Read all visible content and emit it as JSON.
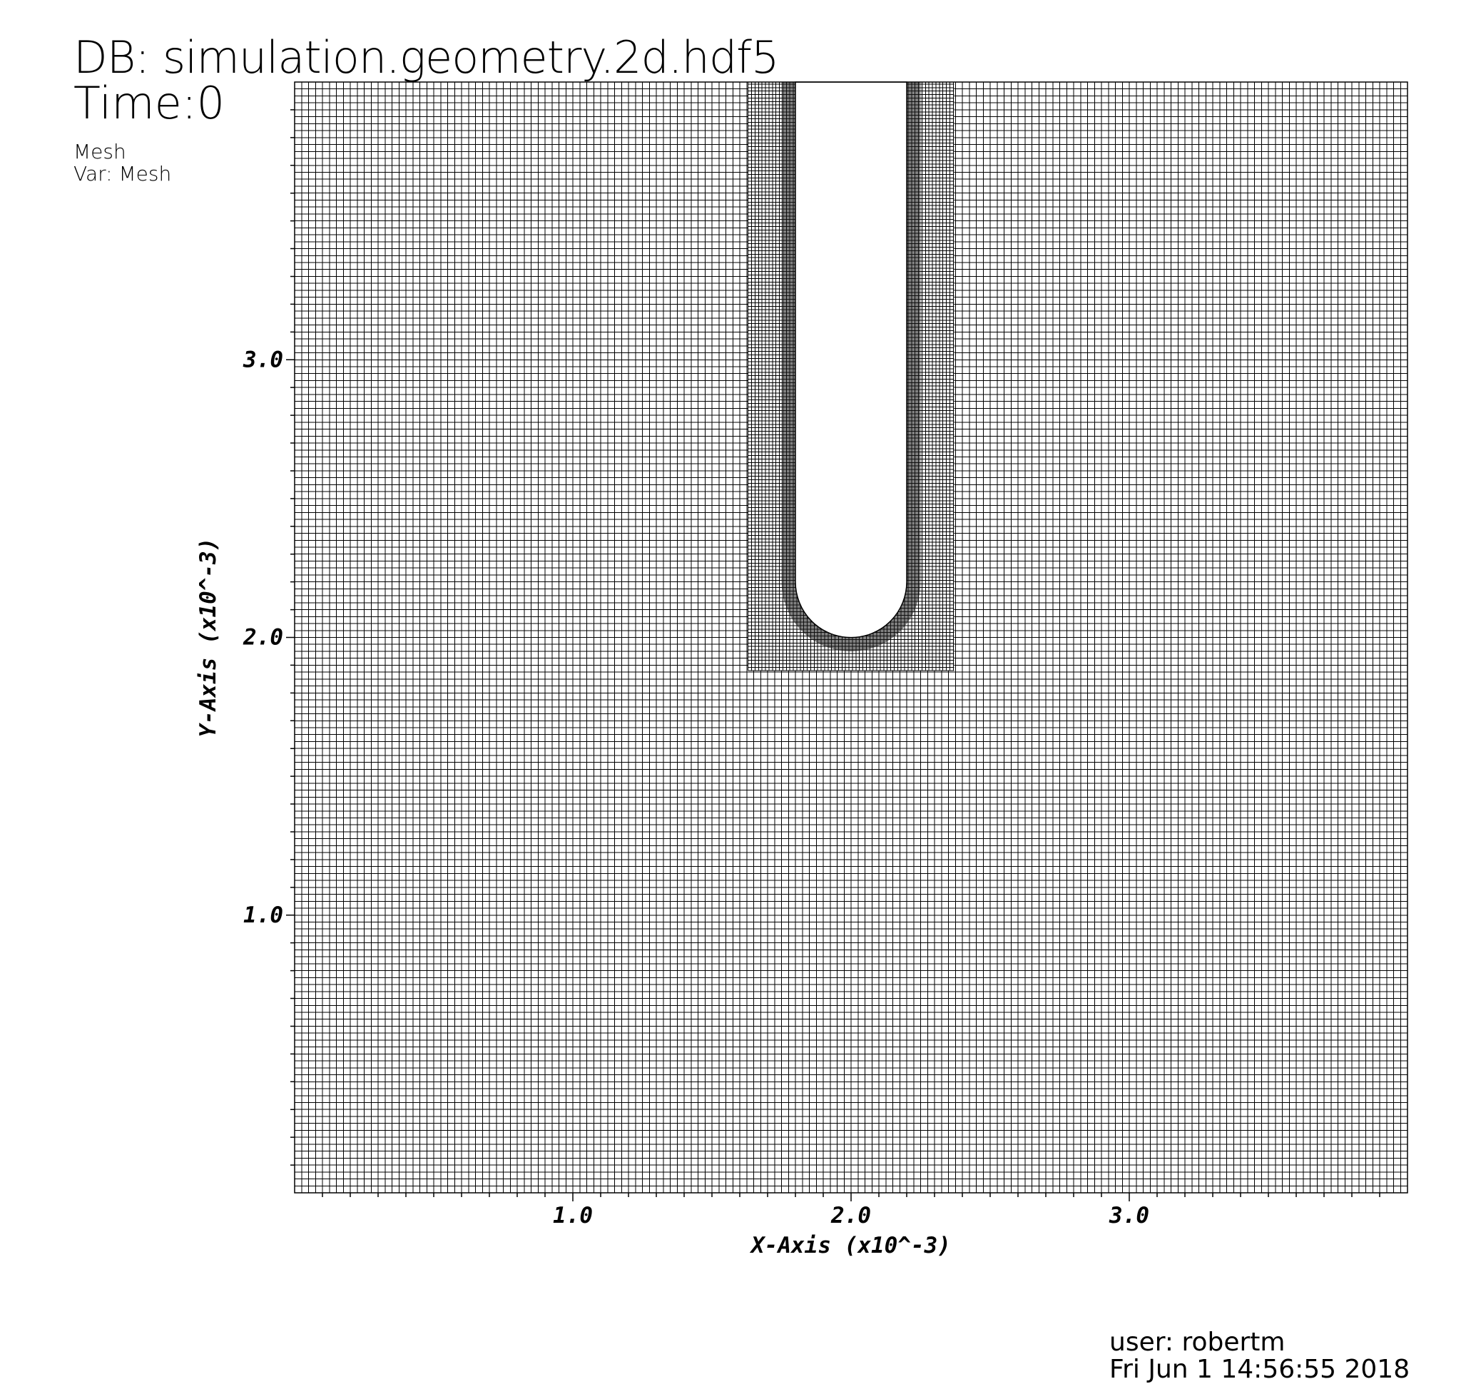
{
  "header": {
    "db": "DB: simulation.geometry.2d.hdf5",
    "time": "Time:0",
    "plot_name": "Mesh",
    "plot_var": "Var: Mesh"
  },
  "footer": {
    "user": "user: robertm",
    "date": "Fri Jun  1 14:56:55 2018"
  },
  "chart_data": {
    "type": "mesh",
    "xlabel": "X-Axis (x10^-3)",
    "ylabel": "Y-Axis (x10^-3)",
    "xlim": [
      0,
      4.0
    ],
    "ylim": [
      0,
      4.0
    ],
    "xticks": [
      "1.0",
      "2.0",
      "3.0"
    ],
    "yticks": [
      "1.0",
      "2.0",
      "3.0"
    ],
    "coarse_cell_size": 0.025,
    "refined_region": {
      "x": [
        1.63,
        2.37
      ],
      "y": [
        1.88,
        4.0
      ]
    },
    "fine_cell_size": 0.0125,
    "slot_cutout": {
      "x": [
        1.8,
        2.2
      ],
      "y_bottom": 2.0,
      "y_top": 4.0,
      "bottom_radius": 0.2
    },
    "colors": {
      "mesh": "#000000",
      "background": "#ffffff"
    }
  }
}
